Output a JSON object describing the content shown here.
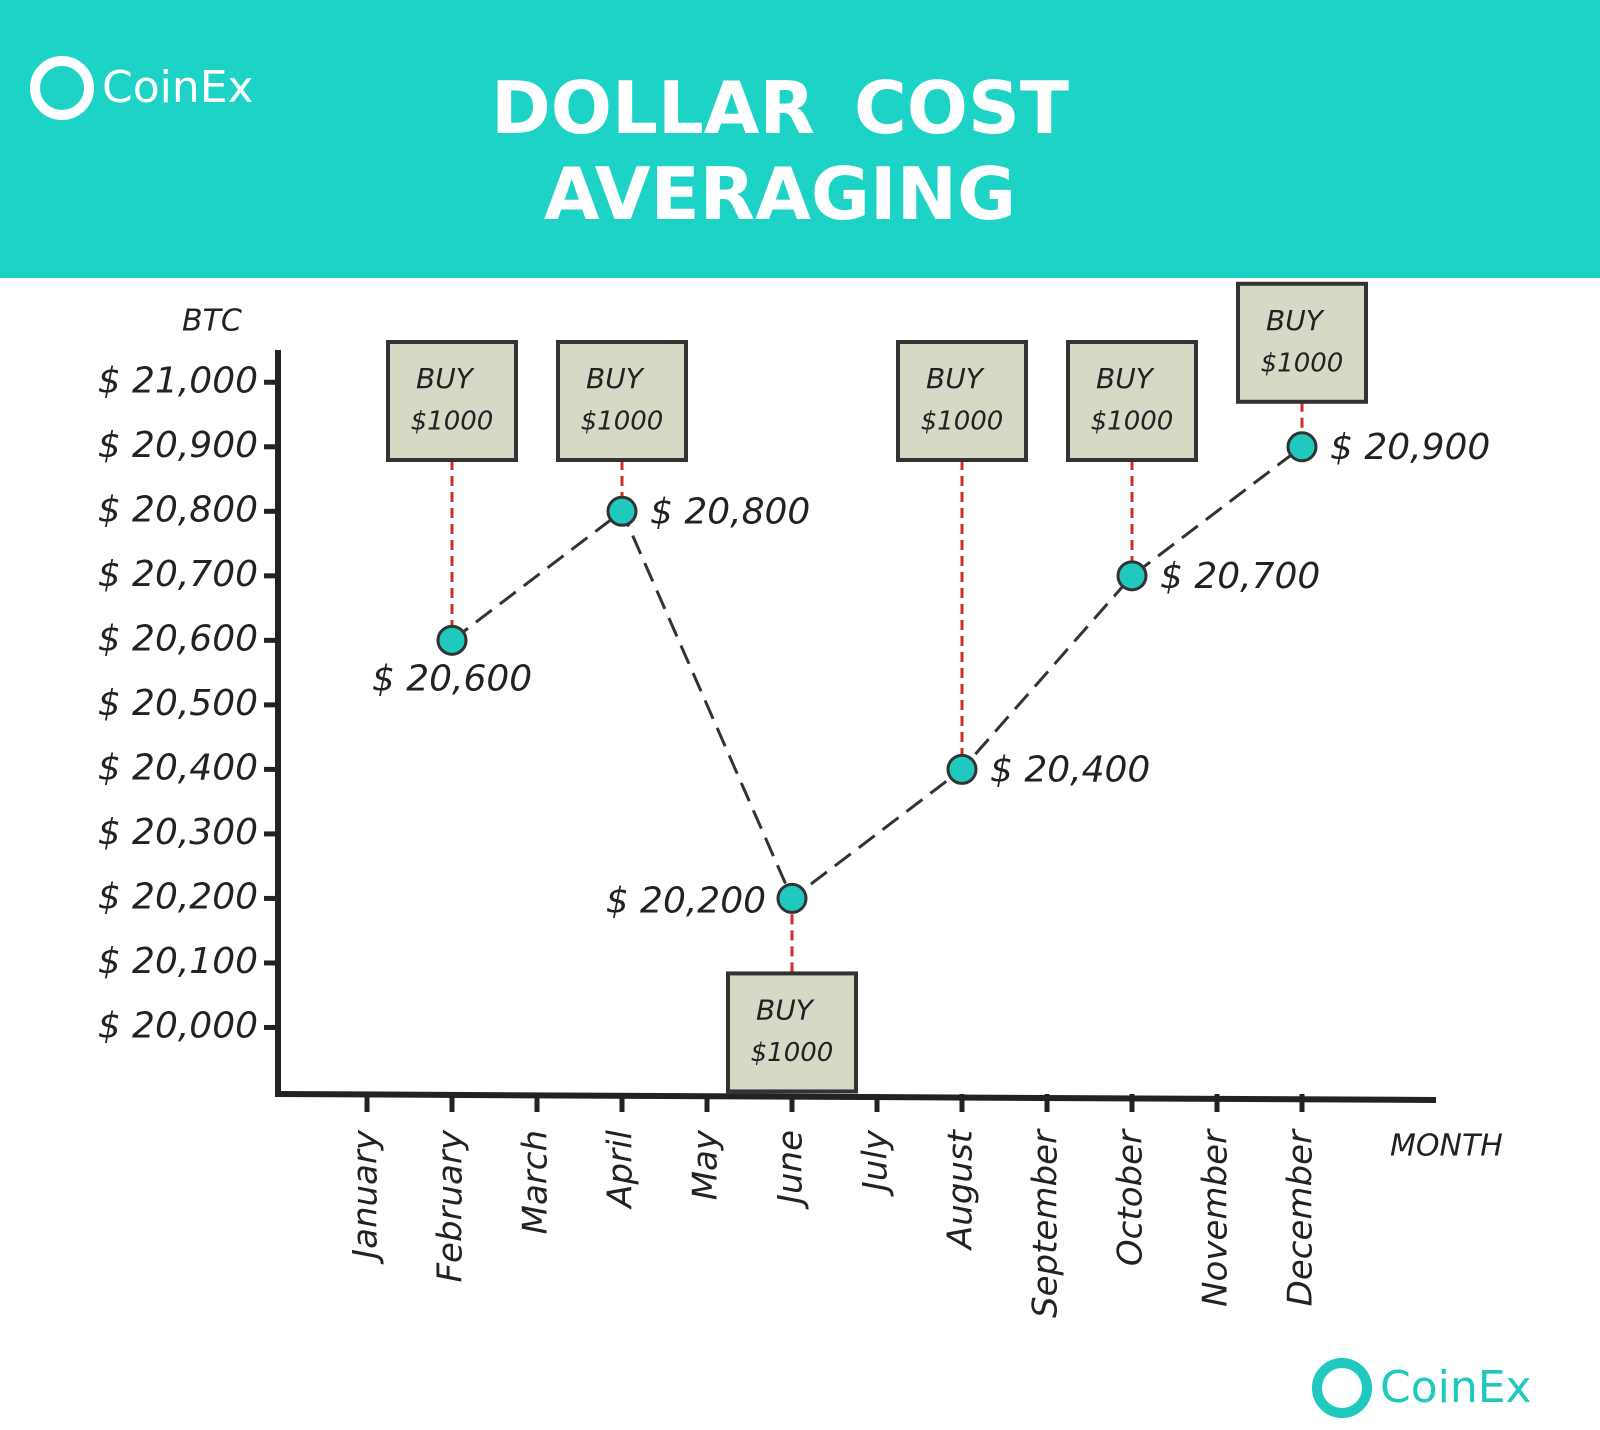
{
  "chart_data": {
    "type": "line",
    "title": "DOLLAR COST AVERAGING",
    "brand": [
      "CoinEx",
      "CoinEx"
    ],
    "y_label": "BTC",
    "x_label": "MONTH",
    "categories": [
      "January",
      "February",
      "March",
      "April",
      "May",
      "June",
      "July",
      "August",
      "September",
      "October",
      "November",
      "December"
    ],
    "x": [
      "February",
      "April",
      "June",
      "August",
      "October",
      "December"
    ],
    "values": [
      20600,
      20800,
      20200,
      20400,
      20700,
      20900
    ],
    "value_labels": [
      "$ 20,600",
      "$ 20,800",
      "$ 20,200",
      "$ 20,400",
      "$ 20,700",
      "$ 20,900"
    ],
    "buy_labels": [
      {
        "title": "BUY",
        "amount": "$1000"
      },
      {
        "title": "BUY",
        "amount": "$1000"
      },
      {
        "title": "BUY",
        "amount": "$1000"
      },
      {
        "title": "BUY",
        "amount": "$1000"
      },
      {
        "title": "BUY",
        "amount": "$1000"
      },
      {
        "title": "BUY",
        "amount": "$1000"
      }
    ],
    "color": "#1fc9be",
    "line_color": "#333333",
    "connector_color": "#d62a2a",
    "header_color": "#1dd3c6",
    "ylim": [
      19900,
      21050
    ],
    "yticks": [
      {
        "value": 20000,
        "label": "$ 20,000"
      },
      {
        "value": 20100,
        "label": "$ 20,100"
      },
      {
        "value": 20200,
        "label": "$ 20,200"
      },
      {
        "value": 20300,
        "label": "$ 20,300"
      },
      {
        "value": 20400,
        "label": "$ 20,400"
      },
      {
        "value": 20500,
        "label": "$ 20,500"
      },
      {
        "value": 20600,
        "label": "$ 20,600"
      },
      {
        "value": 20700,
        "label": "$ 20,700"
      },
      {
        "value": 20800,
        "label": "$ 20,800"
      },
      {
        "value": 20900,
        "label": "$ 20,900"
      },
      {
        "value": 21000,
        "label": "$ 21,000"
      }
    ]
  }
}
